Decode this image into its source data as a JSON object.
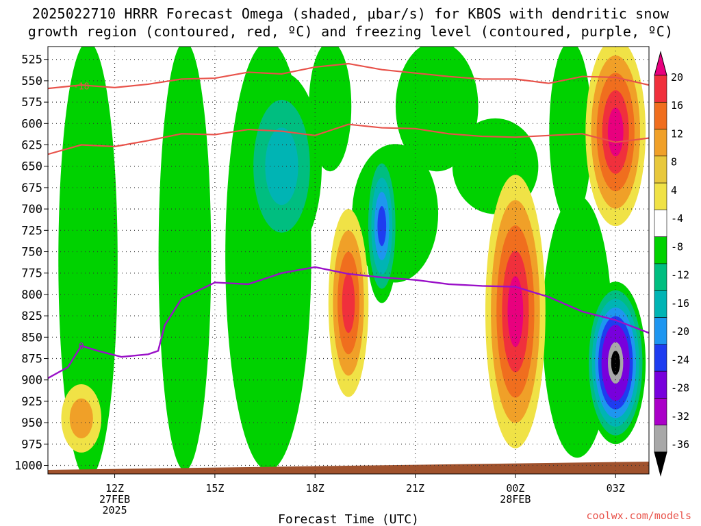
{
  "title_line1": "2025022710 HRRR Forecast Omega (shaded, μbar/s) for KBOS with dendritic snow",
  "title_line2": "growth region (contoured, red, ºC) and freezing level (contoured, purple, ºC)",
  "credit": "coolwx.com/models",
  "chart_data": {
    "type": "heatmap",
    "xlabel": "Forecast Time (UTC)",
    "x_range_hours": [
      10.0,
      28.0
    ],
    "x_ticks": [
      {
        "hour": 12,
        "label": "12Z",
        "sub1": "27FEB",
        "sub2": "2025"
      },
      {
        "hour": 15,
        "label": "15Z",
        "sub1": "",
        "sub2": ""
      },
      {
        "hour": 18,
        "label": "18Z",
        "sub1": "",
        "sub2": ""
      },
      {
        "hour": 21,
        "label": "21Z",
        "sub1": "",
        "sub2": ""
      },
      {
        "hour": 24,
        "label": "00Z",
        "sub1": "28FEB",
        "sub2": ""
      },
      {
        "hour": 27,
        "label": "03Z",
        "sub1": "",
        "sub2": ""
      }
    ],
    "y_range_hpa": [
      1010,
      510
    ],
    "y_ticks": [
      525,
      550,
      575,
      600,
      625,
      650,
      675,
      700,
      725,
      750,
      775,
      800,
      825,
      850,
      875,
      900,
      925,
      950,
      975,
      1000
    ],
    "grid": true,
    "colorbar": {
      "labels": [
        "20",
        "16",
        "12",
        "8",
        "4",
        "-4",
        "-8",
        "-12",
        "-16",
        "-20",
        "-24",
        "-28",
        "-32",
        "-36"
      ],
      "colors": [
        "#e8007e",
        "#f0303c",
        "#f06e1e",
        "#f0a028",
        "#e8c83c",
        "#f0e246",
        "#ffffff",
        "#00d200",
        "#00be80",
        "#00b4b4",
        "#1e96f0",
        "#1e3cf0",
        "#7800dc",
        "#aa00c8",
        "#a8a8a8",
        "#000000"
      ]
    },
    "dgz_contours": [
      {
        "label": "-18",
        "points": [
          [
            10.0,
            559
          ],
          [
            11.0,
            555
          ],
          [
            12.0,
            558
          ],
          [
            13.0,
            554
          ],
          [
            14.0,
            548
          ],
          [
            15.0,
            547
          ],
          [
            16.0,
            540
          ],
          [
            17.0,
            542
          ],
          [
            18.0,
            534
          ],
          [
            19.0,
            530
          ],
          [
            20.0,
            537
          ],
          [
            21.0,
            541
          ],
          [
            22.0,
            545
          ],
          [
            23.0,
            548
          ],
          [
            24.0,
            548
          ],
          [
            25.0,
            553
          ],
          [
            26.0,
            545
          ],
          [
            27.0,
            546
          ],
          [
            28.0,
            555
          ]
        ]
      },
      {
        "label": "",
        "points": [
          [
            10.0,
            636
          ],
          [
            11.0,
            625
          ],
          [
            12.0,
            627
          ],
          [
            13.0,
            620
          ],
          [
            14.0,
            612
          ],
          [
            15.0,
            613
          ],
          [
            16.0,
            607
          ],
          [
            17.0,
            609
          ],
          [
            18.0,
            614
          ],
          [
            19.0,
            601
          ],
          [
            20.0,
            605
          ],
          [
            21.0,
            606
          ],
          [
            22.0,
            612
          ],
          [
            23.0,
            615
          ],
          [
            24.0,
            616
          ],
          [
            25.0,
            614
          ],
          [
            26.0,
            612
          ],
          [
            27.0,
            622
          ],
          [
            28.0,
            617
          ]
        ]
      }
    ],
    "freezing_level": {
      "label": "0",
      "points": [
        [
          10.0,
          898
        ],
        [
          10.6,
          885
        ],
        [
          11.0,
          860
        ],
        [
          11.5,
          866
        ],
        [
          12.2,
          873
        ],
        [
          13.0,
          870
        ],
        [
          13.3,
          866
        ],
        [
          13.5,
          836
        ],
        [
          14.0,
          805
        ],
        [
          15.0,
          786
        ],
        [
          16.0,
          788
        ],
        [
          17.0,
          775
        ],
        [
          18.0,
          768
        ],
        [
          19.0,
          776
        ],
        [
          20.0,
          780
        ],
        [
          21.0,
          783
        ],
        [
          22.0,
          788
        ],
        [
          23.0,
          790
        ],
        [
          24.0,
          791
        ],
        [
          25.0,
          803
        ],
        [
          26.0,
          820
        ],
        [
          27.0,
          830
        ],
        [
          28.0,
          845
        ]
      ]
    },
    "omega_features": [
      {
        "kind": "ellipse",
        "hour": 27.0,
        "hpa": 880,
        "rx_h": 0.9,
        "ry_hpa": 95,
        "levels": [
          -4,
          -8,
          -12,
          -16,
          -20,
          -24,
          -28,
          -32,
          -36
        ]
      },
      {
        "kind": "ellipse",
        "hour": 24.0,
        "hpa": 820,
        "rx_h": 0.9,
        "ry_hpa": 160,
        "levels": [
          4,
          8,
          12,
          16,
          20
        ]
      },
      {
        "kind": "ellipse",
        "hour": 27.0,
        "hpa": 610,
        "rx_h": 0.9,
        "ry_hpa": 110,
        "levels": [
          4,
          8,
          12,
          16,
          20
        ]
      },
      {
        "kind": "ellipse",
        "hour": 19.0,
        "hpa": 810,
        "rx_h": 0.6,
        "ry_hpa": 110,
        "levels": [
          4,
          8,
          12,
          16
        ]
      },
      {
        "kind": "ellipse",
        "hour": 20.0,
        "hpa": 720,
        "rx_h": 0.5,
        "ry_hpa": 90,
        "levels": [
          -4,
          -8,
          -12,
          -16,
          -20
        ]
      },
      {
        "kind": "ellipse",
        "hour": 17.0,
        "hpa": 650,
        "rx_h": 1.2,
        "ry_hpa": 110,
        "levels": [
          -4,
          -8,
          -12
        ]
      },
      {
        "kind": "ellipse",
        "hour": 11.0,
        "hpa": 945,
        "rx_h": 0.6,
        "ry_hpa": 40,
        "levels": [
          4,
          8
        ]
      }
    ]
  }
}
